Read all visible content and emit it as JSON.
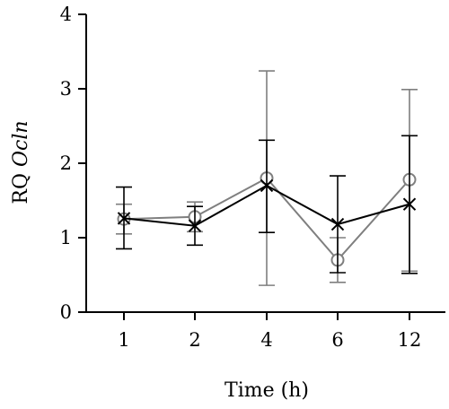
{
  "chart_data": {
    "type": "line",
    "xlabel": "Time (h)",
    "ylabel_prefix": "RQ ",
    "ylabel_gene": "Ocln",
    "categories": [
      "1",
      "2",
      "4",
      "6",
      "12"
    ],
    "ylim": [
      0,
      4
    ],
    "yticks": [
      "0",
      "1",
      "2",
      "3",
      "4"
    ],
    "grid": false,
    "series": [
      {
        "marker": "circle",
        "color": "#7f7f7f",
        "values": [
          1.25,
          1.28,
          1.8,
          0.7,
          1.78
        ],
        "err_low": [
          1.05,
          1.08,
          0.36,
          0.4,
          0.55
        ],
        "err_high": [
          1.45,
          1.48,
          3.24,
          1.0,
          2.99
        ]
      },
      {
        "marker": "x",
        "color": "#000000",
        "values": [
          1.26,
          1.16,
          1.7,
          1.18,
          1.45
        ],
        "err_low": [
          0.85,
          0.9,
          1.07,
          0.53,
          0.52
        ],
        "err_high": [
          1.68,
          1.42,
          2.31,
          1.83,
          2.37
        ]
      }
    ]
  }
}
